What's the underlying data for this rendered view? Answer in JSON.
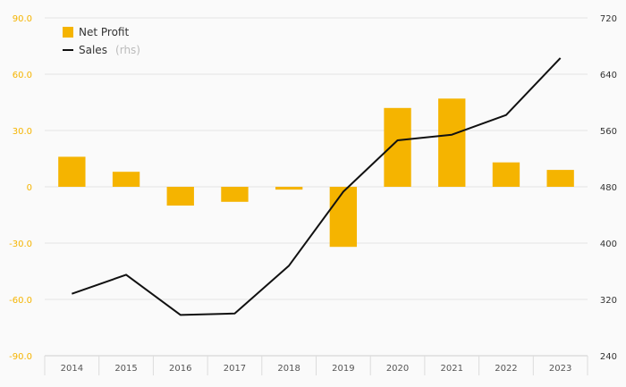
{
  "chart_data": {
    "type": "bar+line",
    "categories": [
      "2014",
      "2015",
      "2016",
      "2017",
      "2018",
      "2019",
      "2020",
      "2021",
      "2022",
      "2023"
    ],
    "series": [
      {
        "name": "Net Profit",
        "type": "bar",
        "axis": "left",
        "color": "#f5b400",
        "values": [
          16.0,
          8.0,
          -10.0,
          -8.0,
          -1.5,
          -32.0,
          42.0,
          47.0,
          13.0,
          9.0
        ]
      },
      {
        "name": "Sales",
        "name_suffix": "(rhs)",
        "type": "line",
        "axis": "right",
        "color": "#111111",
        "values": [
          328,
          355,
          298,
          300,
          368,
          473,
          546,
          554,
          582,
          663
        ]
      }
    ],
    "y_left": {
      "ylim": [
        -90,
        90
      ],
      "ticks": [
        90,
        60,
        30,
        0,
        -30,
        -60,
        -90
      ],
      "tick_labels": [
        "90.0",
        "60.0",
        "30.0",
        "0",
        "-30.0",
        "-60.0",
        "-90.0"
      ],
      "color": "#f5b400"
    },
    "y_right": {
      "ylim": [
        240,
        720
      ],
      "ticks": [
        720,
        640,
        560,
        480,
        400,
        320,
        240
      ],
      "tick_labels": [
        "720",
        "640",
        "560",
        "480",
        "400",
        "320",
        "240"
      ],
      "color": "#333333"
    },
    "grid": true,
    "legend_position": "top-left",
    "title": "",
    "xlabel": "",
    "ylabel": ""
  }
}
